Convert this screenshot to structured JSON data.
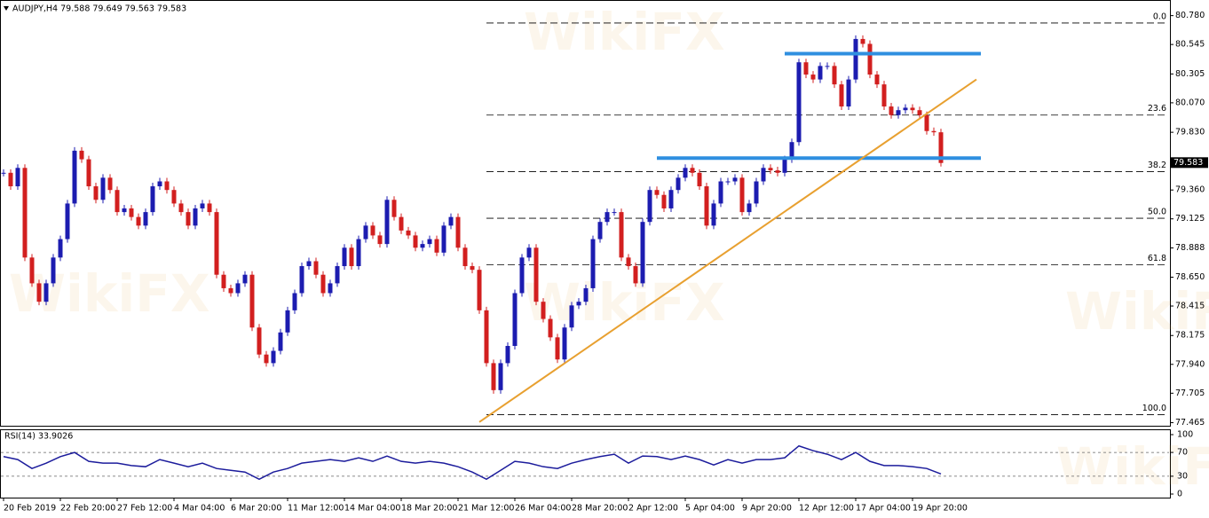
{
  "chart_data": {
    "type": "candlestick",
    "title": "AUDJPY,H4  79.588 79.649 79.563 79.583",
    "current_price": {
      "value": 79.583,
      "label": "79.583"
    },
    "watermark": "WikiFX",
    "colors": {
      "up": "#1c1cb0",
      "down": "#d21f1f",
      "level": "#2f8fe0",
      "trend": "#e8a030",
      "rsi": "#1c1c9c"
    },
    "x_labels": [
      "20 Feb 2019",
      "22 Feb 20:00",
      "27 Feb 12:00",
      "4 Mar 04:00",
      "6 Mar 20:00",
      "11 Mar 12:00",
      "14 Mar 04:00",
      "18 Mar 20:00",
      "21 Mar 12:00",
      "26 Mar 04:00",
      "28 Mar 20:00",
      "2 Apr 12:00",
      "5 Apr 04:00",
      "9 Apr 20:00",
      "12 Apr 12:00",
      "17 Apr 04:00",
      "19 Apr 20:00"
    ],
    "close": [
      79.5,
      79.39,
      79.54,
      78.81,
      78.6,
      78.45,
      78.6,
      78.81,
      78.96,
      79.25,
      79.68,
      79.61,
      79.39,
      79.28,
      79.46,
      79.36,
      79.18,
      79.21,
      79.14,
      79.07,
      79.18,
      79.39,
      79.43,
      79.36,
      79.25,
      79.18,
      79.07,
      79.21,
      79.25,
      79.18,
      78.67,
      78.56,
      78.52,
      78.6,
      78.67,
      78.24,
      78.02,
      77.95,
      78.05,
      78.2,
      78.38,
      78.52,
      78.74,
      78.78,
      78.67,
      78.52,
      78.6,
      78.74,
      78.89,
      78.74,
      78.96,
      79.07,
      78.99,
      78.92,
      79.28,
      79.14,
      79.03,
      78.99,
      78.89,
      78.92,
      78.96,
      78.85,
      79.07,
      79.14,
      78.89,
      78.74,
      78.71,
      78.38,
      77.95,
      77.73,
      77.95,
      78.09,
      78.52,
      78.81,
      78.89,
      78.45,
      78.31,
      78.16,
      77.98,
      78.24,
      78.42,
      78.45,
      78.56,
      78.96,
      79.1,
      79.18,
      79.18,
      78.81,
      78.74,
      78.6,
      79.1,
      79.36,
      79.32,
      79.21,
      79.36,
      79.46,
      79.54,
      79.5,
      79.39,
      79.07,
      79.25,
      79.43,
      79.43,
      79.46,
      79.18,
      79.25,
      79.43,
      79.54,
      79.52,
      79.5,
      79.61,
      79.75,
      80.4,
      80.3,
      80.26,
      80.37,
      80.37,
      80.22,
      80.04,
      80.26,
      80.59,
      80.55,
      80.3,
      80.22,
      80.04,
      79.97,
      80.01,
      80.03,
      80.01,
      79.97,
      79.84,
      79.83,
      79.58
    ],
    "ylim": [
      77.44,
      80.9
    ],
    "yticks": [
      {
        "value": 80.78,
        "label": "80.780"
      },
      {
        "value": 80.545,
        "label": "80.545"
      },
      {
        "value": 80.305,
        "label": "80.305"
      },
      {
        "value": 80.07,
        "label": "80.070"
      },
      {
        "value": 79.83,
        "label": "79.830"
      },
      {
        "value": 79.36,
        "label": "79.360"
      },
      {
        "value": 79.125,
        "label": "79.125"
      },
      {
        "value": 78.888,
        "label": "78.888"
      },
      {
        "value": 78.65,
        "label": "78.650"
      },
      {
        "value": 78.415,
        "label": "78.415"
      },
      {
        "value": 78.175,
        "label": "78.175"
      },
      {
        "value": 77.94,
        "label": "77.940"
      },
      {
        "value": 77.705,
        "label": "77.705"
      },
      {
        "value": 77.465,
        "label": "77.465"
      }
    ],
    "fib_levels": [
      {
        "value": 80.72,
        "label": "0.0"
      },
      {
        "value": 79.97,
        "label": "23.6"
      },
      {
        "value": 79.51,
        "label": "38.2"
      },
      {
        "value": 79.13,
        "label": "50.0"
      },
      {
        "value": 78.75,
        "label": "61.8"
      },
      {
        "value": 77.53,
        "label": "100.0"
      }
    ],
    "resistance_levels": [
      80.47,
      79.62
    ],
    "trendline": [
      77.47,
      80.26
    ],
    "rsi": {
      "title": "RSI(14) 33.9026",
      "values": [
        63,
        58,
        43,
        52,
        63,
        70,
        55,
        52,
        52,
        48,
        46,
        58,
        52,
        46,
        52,
        43,
        40,
        37,
        25,
        37,
        43,
        52,
        55,
        58,
        55,
        61,
        55,
        64,
        55,
        52,
        55,
        52,
        46,
        37,
        25,
        40,
        55,
        52,
        46,
        43,
        52,
        58,
        63,
        67,
        52,
        64,
        63,
        58,
        64,
        58,
        49,
        58,
        52,
        58,
        58,
        61,
        81,
        73,
        67,
        58,
        70,
        55,
        48,
        48,
        46,
        43,
        33.9
      ],
      "ylim": [
        0,
        100
      ],
      "yticks": [
        100,
        70,
        30,
        0
      ],
      "levels": [
        70,
        30
      ]
    }
  }
}
